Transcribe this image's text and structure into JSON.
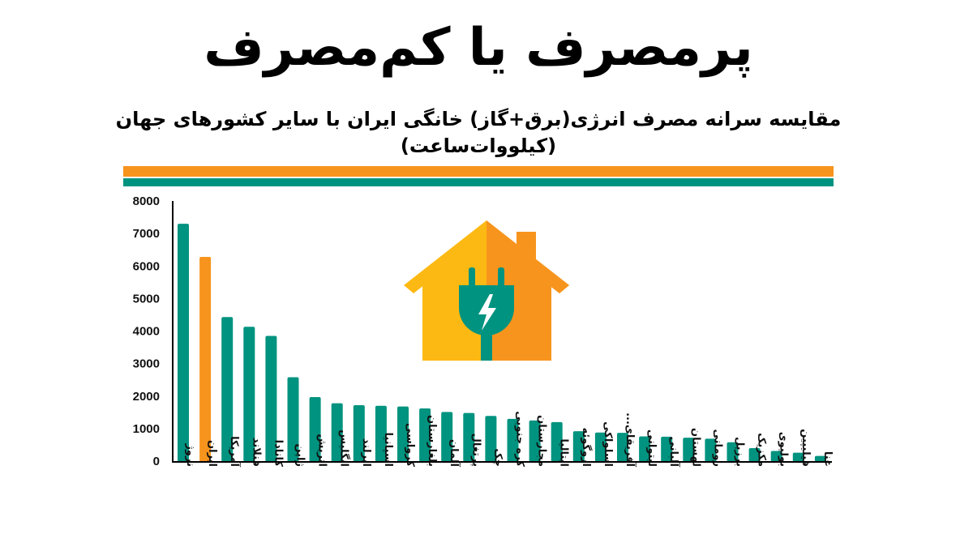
{
  "header": {
    "title": "پرمصرف یا کم‌مصرف",
    "subtitle_line1": "مقایسه سرانه مصرف انرژی(برق+گاز) خانگی ایران با سایر کشورهای جهان",
    "subtitle_line2": "(کیلووات‌ساعت)"
  },
  "colors": {
    "teal": "#00937F",
    "orange": "#F7941D",
    "highlight": "#F7941D"
  },
  "illustration": {
    "icon": "house-plug-icon"
  },
  "chart_data": {
    "type": "bar",
    "title": "مقایسه سرانه مصرف انرژی(برق+گاز) خانگی ایران با سایر کشورهای جهان",
    "ylabel": "(کیلووات‌ساعت)",
    "xlabel": "",
    "ylim": [
      0,
      8000
    ],
    "yticks": [
      0,
      1000,
      2000,
      3000,
      4000,
      5000,
      6000,
      7000,
      8000
    ],
    "grid": false,
    "highlight_category": "ایران",
    "categories": [
      "نروژ",
      "ایران",
      "آمریکا",
      "فنلاند",
      "کانادا",
      "ژاپن",
      "اتریش",
      "انگلیس",
      "ایرلند",
      "اسپانیا",
      "کرواسی",
      "بلغارستان",
      "آلمان",
      "پرتغال",
      "چک",
      "کره جنوبی",
      "مجارستان",
      "ایتالیا",
      "اروگوئه",
      "اسلواکی",
      "آفریقای...",
      "لیتوانی",
      "آلبانی",
      "لهستان",
      "رومانی",
      "برزیل",
      "مکزیک",
      "بولیوی",
      "فیلیپین",
      "غنا"
    ],
    "values": [
      7300,
      6280,
      4430,
      4130,
      3850,
      2580,
      1970,
      1780,
      1720,
      1700,
      1680,
      1620,
      1510,
      1480,
      1390,
      1300,
      1250,
      1200,
      920,
      880,
      870,
      760,
      750,
      720,
      690,
      580,
      400,
      310,
      260,
      160
    ]
  }
}
